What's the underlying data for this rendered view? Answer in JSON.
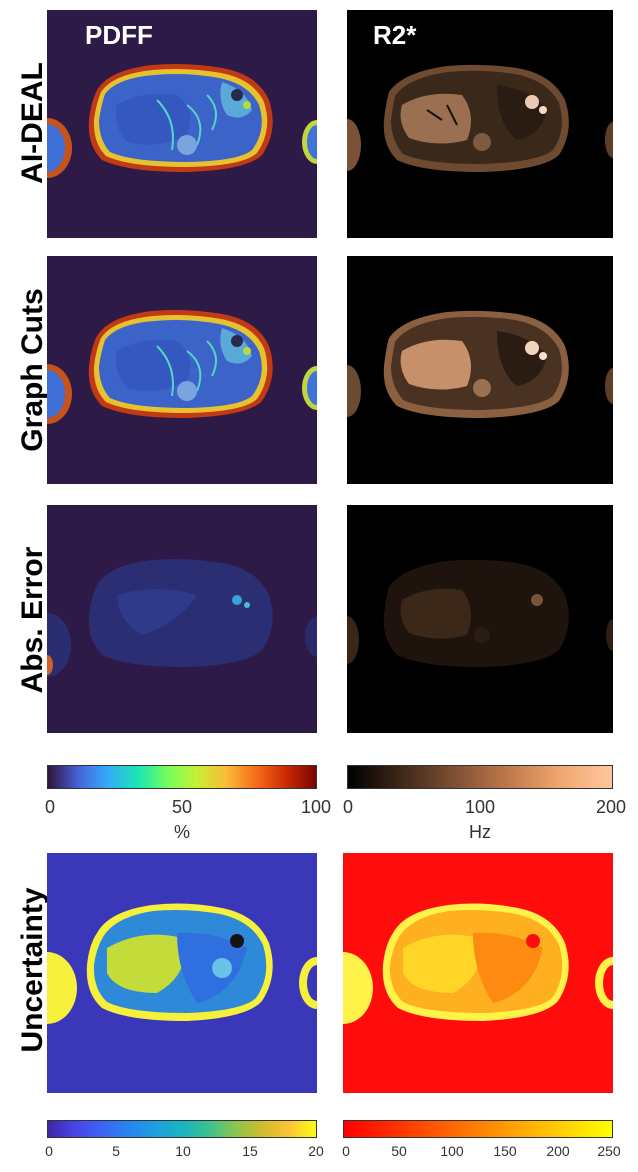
{
  "columns": {
    "pdff": "PDFF",
    "r2star": "R2*"
  },
  "rows": {
    "aideal": "AI-DEAL",
    "graphcuts": "Graph Cuts",
    "abserror": "Abs. Error",
    "uncertainty": "Uncertainty"
  },
  "colorbars": {
    "pdff": {
      "colormap": "turbo",
      "ticks": [
        "0",
        "50",
        "100"
      ],
      "unit": "%"
    },
    "r2star": {
      "colormap": "copper",
      "ticks": [
        "0",
        "100",
        "200"
      ],
      "unit": "Hz"
    },
    "pdff_uncertainty": {
      "colormap": "parula",
      "ticks": [
        "0",
        "5",
        "10",
        "15",
        "20"
      ]
    },
    "r2star_uncertainty": {
      "colormap": "autumn",
      "ticks": [
        "0",
        "50",
        "100",
        "150",
        "200",
        "250"
      ]
    }
  },
  "colors": {
    "pdff_background": "#2e1a47",
    "r2_background": "#000000",
    "uncertainty_pdff_background": "#3a37b8",
    "uncertainty_r2_background": "#ff0d0d"
  }
}
